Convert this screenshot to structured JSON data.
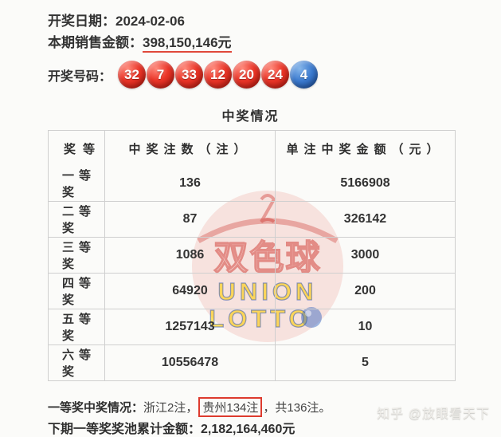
{
  "header": {
    "draw_date_label": "开奖日期：",
    "draw_date": "2024-02-06",
    "sales_label": "本期销售金额：",
    "sales_amount": "398,150,146元",
    "numbers_label": "开奖号码：",
    "red_balls": [
      "32",
      "7",
      "33",
      "12",
      "20",
      "24"
    ],
    "blue_ball": "4"
  },
  "table": {
    "title": "中奖情况",
    "columns": [
      "奖等",
      "中奖注数（注）",
      "单注中奖金额（元）"
    ],
    "rows": [
      {
        "tier": "一等奖",
        "count": "136",
        "prize": "5166908"
      },
      {
        "tier": "二等奖",
        "count": "87",
        "prize": "326142"
      },
      {
        "tier": "三等奖",
        "count": "1086",
        "prize": "3000"
      },
      {
        "tier": "四等奖",
        "count": "64920",
        "prize": "200"
      },
      {
        "tier": "五等奖",
        "count": "1257143",
        "prize": "10"
      },
      {
        "tier": "六等奖",
        "count": "10556478",
        "prize": "5"
      }
    ]
  },
  "footer": {
    "first_prize_label": "一等奖中奖情况：",
    "first_prize_part1": "浙江2注，",
    "first_prize_highlight": "贵州134注",
    "first_prize_part2": "，共136注。",
    "jackpot_label": "下期一等奖奖池累计金额：",
    "jackpot_amount": "2,182,164,460元"
  },
  "watermark": {
    "logo_cn": "双色球",
    "logo_en_line1": "UNION",
    "logo_en_line2": "LOTTO",
    "site_credit": "知乎 @放眼看天下"
  },
  "colors": {
    "red_ball": "#d6281e",
    "blue_ball": "#2f6fc4",
    "accent_red": "#dd3b2e",
    "underline_red": "#e0493a",
    "text": "#333333",
    "table_border": "#cfcfcf"
  }
}
